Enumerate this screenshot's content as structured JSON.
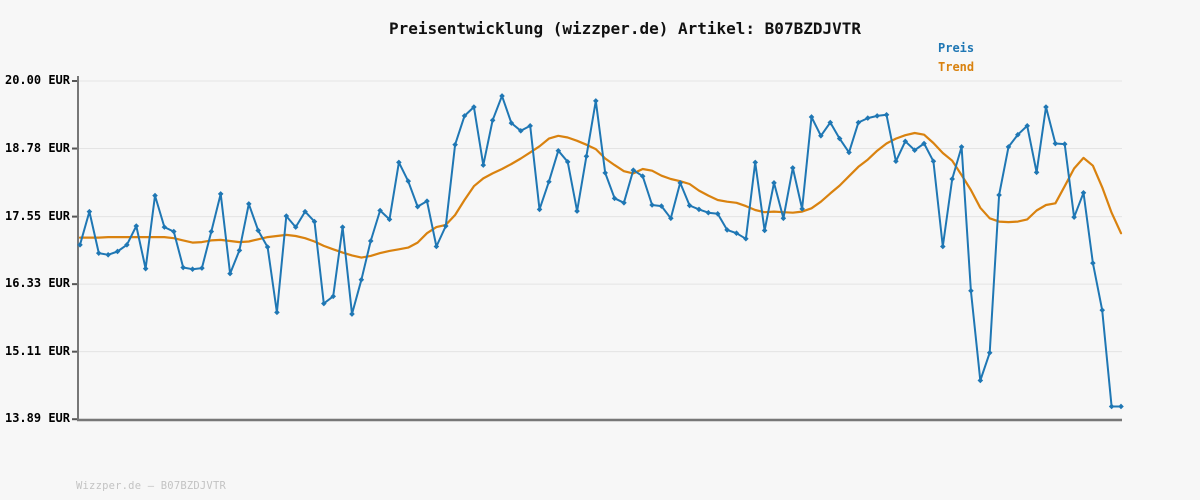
{
  "title": "Preisentwicklung (wizzper.de) Artikel: B07BZDJVTR",
  "footer": "Wizzper.de – B07BZDJVTR",
  "legend": {
    "price_label": "Preis",
    "trend_label": "Trend",
    "position": "top-right"
  },
  "colors": {
    "price": "#1f77b4",
    "trend": "#d9820f",
    "background": "#f7f7f7",
    "grid": "#e4e4e4",
    "axis": "#777777",
    "tick": "#555555",
    "title_text": "#111111",
    "footer_text": "#c3c3c3"
  },
  "y_axis": {
    "unit": "EUR",
    "labels": [
      "20.00 EUR",
      "18.78 EUR",
      "17.55 EUR",
      "16.33 EUR",
      "15.11 EUR",
      "13.89 EUR"
    ],
    "values": [
      20.0,
      18.78,
      17.55,
      16.33,
      15.11,
      13.89
    ]
  },
  "x_axis": {
    "tick_labels_visible": false
  },
  "chart_data": {
    "type": "line",
    "title": "Preisentwicklung (wizzper.de) Artikel: B07BZDJVTR",
    "ylabel": "EUR",
    "ylim": [
      13.89,
      20.0
    ],
    "grid": "horizontal",
    "legend_position": "top-right",
    "x_labels_visible": false,
    "series": [
      {
        "name": "Preis",
        "color": "#1f77b4",
        "marker": "diamond",
        "values": [
          17.04,
          17.64,
          16.89,
          16.86,
          16.92,
          17.04,
          17.38,
          16.61,
          17.93,
          17.36,
          17.28,
          16.63,
          16.6,
          16.62,
          17.28,
          17.96,
          16.52,
          16.94,
          17.78,
          17.3,
          17.0,
          15.82,
          17.56,
          17.36,
          17.64,
          17.46,
          15.98,
          16.11,
          17.36,
          15.79,
          16.41,
          17.11,
          17.66,
          17.5,
          18.53,
          18.19,
          17.73,
          17.83,
          17.01,
          17.38,
          18.85,
          19.37,
          19.53,
          18.48,
          19.29,
          19.73,
          19.24,
          19.1,
          19.19,
          17.68,
          18.18,
          18.74,
          18.54,
          17.65,
          18.64,
          19.64,
          18.34,
          17.88,
          17.8,
          18.39,
          18.28,
          17.76,
          17.74,
          17.52,
          18.16,
          17.75,
          17.68,
          17.62,
          17.6,
          17.31,
          17.25,
          17.15,
          18.53,
          17.3,
          18.16,
          17.52,
          18.43,
          17.69,
          19.35,
          19.01,
          19.25,
          18.96,
          18.71,
          19.25,
          19.33,
          19.37,
          19.39,
          18.55,
          18.91,
          18.75,
          18.87,
          18.55,
          17.01,
          18.23,
          18.81,
          16.21,
          14.59,
          15.09,
          17.94,
          18.81,
          19.03,
          19.19,
          18.35,
          19.53,
          18.87,
          18.86,
          17.54,
          17.98,
          16.71,
          15.86,
          14.12,
          14.12
        ]
      },
      {
        "name": "Trend",
        "color": "#d9820f",
        "marker": "none",
        "values": [
          17.17,
          17.17,
          17.17,
          17.18,
          17.18,
          17.18,
          17.18,
          17.18,
          17.18,
          17.18,
          17.16,
          17.12,
          17.08,
          17.09,
          17.12,
          17.13,
          17.11,
          17.09,
          17.1,
          17.14,
          17.18,
          17.2,
          17.22,
          17.2,
          17.16,
          17.1,
          17.02,
          16.96,
          16.9,
          16.85,
          16.81,
          16.84,
          16.89,
          16.93,
          16.96,
          16.99,
          17.08,
          17.25,
          17.36,
          17.4,
          17.58,
          17.85,
          18.1,
          18.24,
          18.33,
          18.41,
          18.5,
          18.6,
          18.71,
          18.82,
          18.96,
          19.01,
          18.98,
          18.92,
          18.85,
          18.77,
          18.6,
          18.48,
          18.37,
          18.33,
          18.41,
          18.38,
          18.29,
          18.23,
          18.19,
          18.14,
          18.02,
          17.93,
          17.85,
          17.82,
          17.8,
          17.74,
          17.67,
          17.63,
          17.64,
          17.63,
          17.62,
          17.64,
          17.7,
          17.82,
          17.97,
          18.11,
          18.28,
          18.45,
          18.58,
          18.74,
          18.87,
          18.96,
          19.02,
          19.06,
          19.03,
          18.88,
          18.7,
          18.56,
          18.3,
          18.03,
          17.71,
          17.52,
          17.46,
          17.45,
          17.46,
          17.5,
          17.66,
          17.76,
          17.79,
          18.1,
          18.42,
          18.61,
          18.47,
          18.08,
          17.62,
          17.25
        ]
      }
    ]
  }
}
